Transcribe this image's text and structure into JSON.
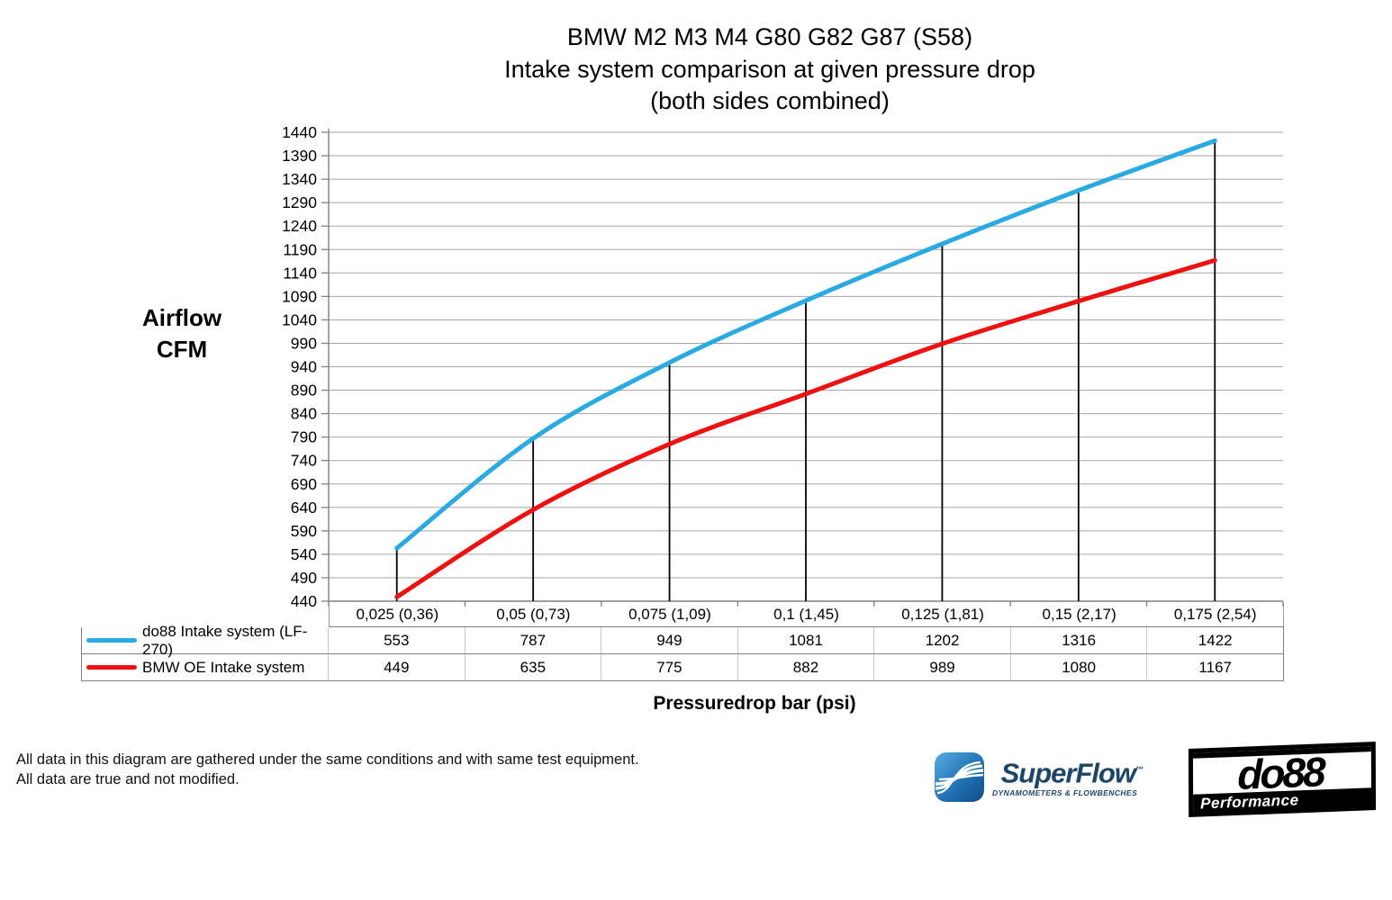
{
  "title": {
    "line1": "BMW M2 M3 M4 G80 G82 G87 (S58)",
    "line2": "Intake system comparison at given pressure drop",
    "line3": "(both sides combined)"
  },
  "y_axis": {
    "label_line1": "Airflow",
    "label_line2": "CFM"
  },
  "x_axis": {
    "label": "Pressuredrop bar (psi)"
  },
  "footer": {
    "line1": "All data in this diagram are gathered under the same conditions and with same test equipment.",
    "line2": "All data are true and not modified."
  },
  "logos": {
    "superflow": {
      "name": "SuperFlow",
      "trademark": "™",
      "tagline": "DYNAMOMETERS & FLOWBENCHES"
    },
    "do88": {
      "name": "do88",
      "tagline": "Performance"
    }
  },
  "colors": {
    "do88_line": "#29ABE2",
    "oe_line": "#EE1111",
    "gridline": "#A6A6A6",
    "axis": "#808080",
    "drop_line": "#000000",
    "table_border_dark": "#808080",
    "table_border_light": "#C8C8C8",
    "superflow_blue_dark": "#0F4C86",
    "superflow_blue_light": "#57ADE0",
    "superflow_text": "#1B4668"
  },
  "chart_data": {
    "type": "line",
    "title": "BMW M2 M3 M4 G80 G82 G87 (S58) Intake system comparison at given pressure drop (both sides combined)",
    "xlabel": "Pressuredrop bar (psi)",
    "ylabel": "Airflow CFM",
    "categories": [
      "0,025 (0,36)",
      "0,05 (0,73)",
      "0,075 (1,09)",
      "0,1 (1,45)",
      "0,125 (1,81)",
      "0,15 (2,17)",
      "0,175 (2,54)"
    ],
    "series": [
      {
        "name": "do88 Intake system (LF-270)",
        "color": "#29ABE2",
        "values": [
          553,
          787,
          949,
          1081,
          1202,
          1316,
          1422
        ]
      },
      {
        "name": "BMW OE Intake system",
        "color": "#EE1111",
        "values": [
          449,
          635,
          775,
          882,
          989,
          1080,
          1167
        ]
      }
    ],
    "ylim": [
      440,
      1440
    ],
    "ytick_step": 50,
    "grid": true,
    "drop_lines_to_first_series": true,
    "legend_position": "table-left"
  }
}
